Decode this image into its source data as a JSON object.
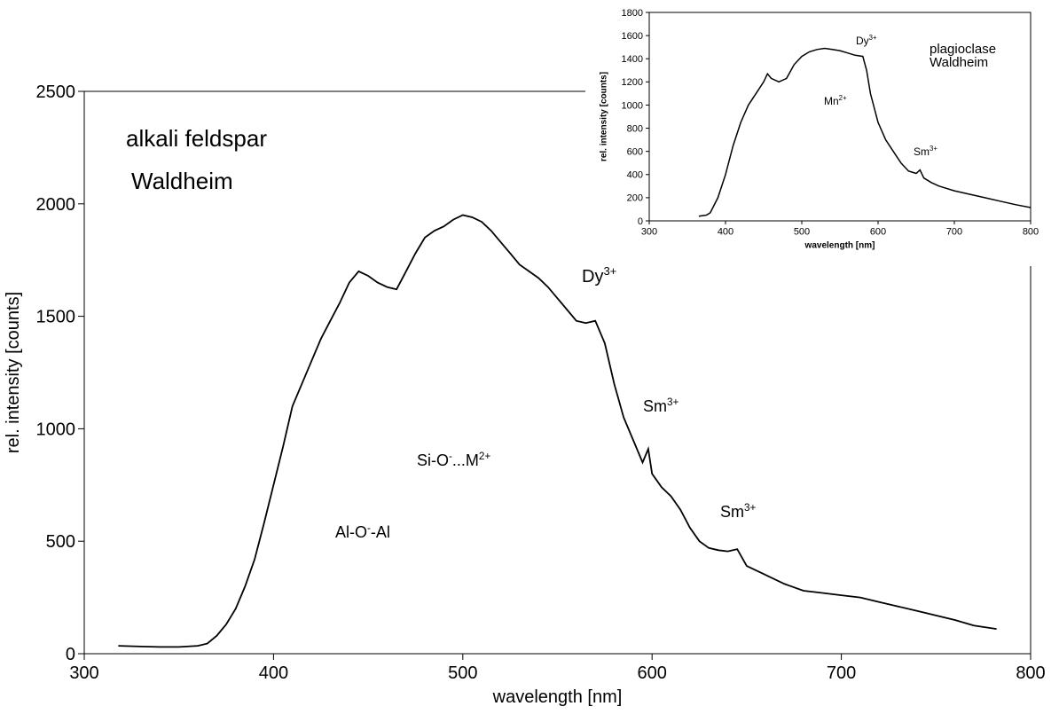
{
  "chart_data": [
    {
      "type": "line",
      "x": [
        318,
        330,
        340,
        350,
        360,
        365,
        370,
        375,
        380,
        385,
        390,
        395,
        400,
        405,
        410,
        415,
        420,
        425,
        430,
        435,
        440,
        445,
        450,
        455,
        460,
        465,
        470,
        475,
        480,
        485,
        490,
        495,
        500,
        505,
        510,
        515,
        520,
        525,
        530,
        535,
        540,
        545,
        550,
        555,
        560,
        565,
        570,
        575,
        580,
        585,
        590,
        595,
        598,
        600,
        605,
        610,
        615,
        620,
        625,
        630,
        635,
        640,
        645,
        650,
        660,
        670,
        680,
        690,
        700,
        710,
        720,
        730,
        740,
        750,
        760,
        770,
        782
      ],
      "values": [
        35,
        32,
        30,
        30,
        35,
        45,
        80,
        130,
        200,
        300,
        420,
        580,
        750,
        920,
        1100,
        1200,
        1300,
        1400,
        1480,
        1560,
        1650,
        1700,
        1680,
        1650,
        1630,
        1620,
        1700,
        1780,
        1850,
        1880,
        1900,
        1930,
        1950,
        1940,
        1920,
        1880,
        1830,
        1780,
        1730,
        1700,
        1670,
        1630,
        1580,
        1530,
        1480,
        1470,
        1480,
        1380,
        1200,
        1050,
        950,
        850,
        910,
        800,
        740,
        700,
        640,
        560,
        500,
        470,
        460,
        455,
        465,
        390,
        350,
        310,
        280,
        270,
        260,
        250,
        230,
        210,
        190,
        170,
        150,
        125,
        110
      ],
      "color": "#000000",
      "xlim": [
        300,
        800
      ],
      "xticks": [
        300,
        400,
        500,
        600,
        700,
        800
      ],
      "ylim": [
        0,
        2500
      ],
      "yticks": [
        0,
        500,
        1000,
        1500,
        2000,
        2500
      ],
      "x_label": "wavelength [nm]",
      "y_label": "rel. intensity [counts]",
      "grid": false,
      "annotations": [
        [
          "alkali feldspar"
        ],
        [
          "Waldheim"
        ],
        [
          "Dy",
          "3+"
        ],
        [
          "Sm",
          "3+"
        ],
        [
          "Sm",
          "3+"
        ],
        [
          "Si-O",
          "-",
          "...M",
          "2+"
        ],
        [
          "Al-O",
          "-",
          "-Al"
        ]
      ]
    },
    {
      "type": "line",
      "x": [
        365,
        375,
        380,
        390,
        400,
        410,
        420,
        430,
        440,
        450,
        455,
        460,
        470,
        480,
        490,
        500,
        510,
        520,
        530,
        540,
        550,
        560,
        570,
        580,
        585,
        590,
        600,
        610,
        620,
        630,
        640,
        650,
        655,
        660,
        670,
        680,
        700,
        720,
        740,
        760,
        780,
        800
      ],
      "values": [
        40,
        50,
        70,
        200,
        400,
        650,
        850,
        1000,
        1100,
        1200,
        1270,
        1230,
        1200,
        1230,
        1350,
        1420,
        1460,
        1480,
        1490,
        1480,
        1470,
        1450,
        1430,
        1420,
        1300,
        1100,
        850,
        700,
        600,
        500,
        430,
        410,
        440,
        370,
        330,
        300,
        260,
        230,
        200,
        170,
        140,
        115
      ],
      "color": "#000000",
      "xlim": [
        300,
        800
      ],
      "xticks": [
        300,
        400,
        500,
        600,
        700,
        800
      ],
      "ylim": [
        0,
        1800
      ],
      "yticks": [
        0,
        200,
        400,
        600,
        800,
        1000,
        1200,
        1400,
        1600,
        1800
      ],
      "x_label": "wavelength [nm]",
      "y_label": "rel. intensity [counts]",
      "grid": false,
      "annotations": [
        [
          "plagioclase"
        ],
        [
          "Waldheim"
        ],
        [
          "Dy",
          "3+"
        ],
        [
          "Mn",
          "2+"
        ],
        [
          "Sm",
          "3+"
        ]
      ]
    }
  ]
}
